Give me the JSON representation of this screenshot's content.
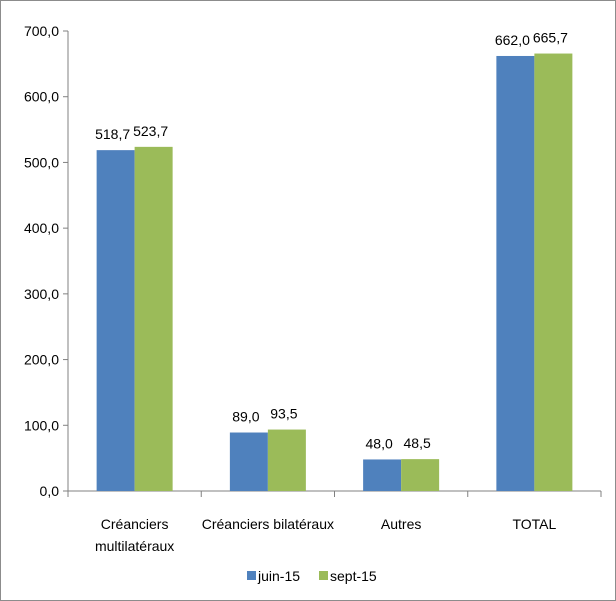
{
  "chart_data": {
    "type": "bar",
    "title": "",
    "xlabel": "",
    "ylabel": "",
    "categories": [
      [
        "Créanciers",
        "multilatéraux"
      ],
      [
        "Créanciers bilatéraux"
      ],
      [
        "Autres"
      ],
      [
        "TOTAL"
      ]
    ],
    "series": [
      {
        "name": "juin-15",
        "color": "#4F81BD",
        "values": [
          518.7,
          89.0,
          48.0,
          662.0
        ],
        "labels": [
          "518,7",
          "89,0",
          "48,0",
          "662,0"
        ]
      },
      {
        "name": "sept-15",
        "color": "#9BBB59",
        "values": [
          523.7,
          93.5,
          48.5,
          665.7
        ],
        "labels": [
          "523,7",
          "93,5",
          "48,5",
          "665,7"
        ]
      }
    ],
    "ylim": [
      0,
      700
    ],
    "yticks": [
      0,
      100,
      200,
      300,
      400,
      500,
      600,
      700
    ],
    "ytick_labels": [
      "0,0",
      "100,0",
      "200,0",
      "300,0",
      "400,0",
      "500,0",
      "600,0",
      "700,0"
    ],
    "grid": false,
    "legend_position": "bottom"
  }
}
